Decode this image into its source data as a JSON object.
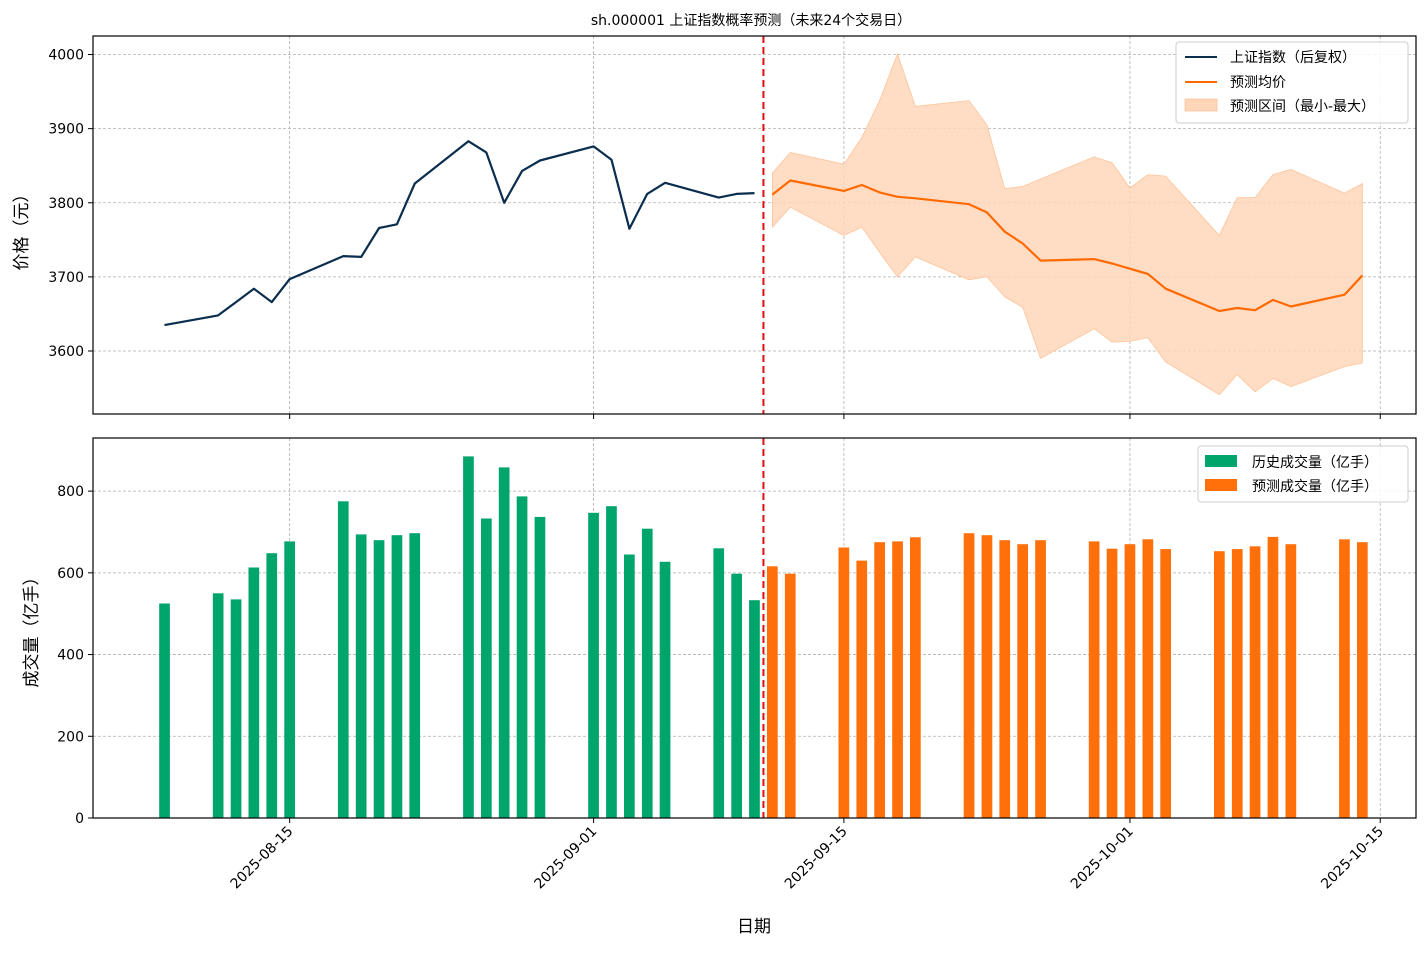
{
  "chart_data": [
    {
      "type": "line",
      "title": "sh.000001 上证指数概率预测（未来24个交易日）",
      "ylabel": "价格（元）",
      "xlabel": "",
      "ylim": [
        3515,
        4025
      ],
      "xlim": [
        "2025-08-04",
        "2025-10-17"
      ],
      "y_ticks": [
        3600,
        3700,
        3800,
        3900,
        4000
      ],
      "grid": true,
      "legend_position": "top-right",
      "legend": [
        "上证指数（后复权）",
        "预测均价",
        "预测区间（最小-最大）"
      ],
      "colors": {
        "history": "#0b2d4e",
        "forecast": "#ff6a00",
        "band": "#ffd6ba",
        "divider": "#e01010"
      },
      "divider_date": "2025-09-10",
      "series": [
        {
          "name": "上证指数（后复权）",
          "x": [
            "2025-08-08",
            "2025-08-11",
            "2025-08-12",
            "2025-08-13",
            "2025-08-14",
            "2025-08-15",
            "2025-08-18",
            "2025-08-19",
            "2025-08-20",
            "2025-08-21",
            "2025-08-22",
            "2025-08-25",
            "2025-08-26",
            "2025-08-27",
            "2025-08-28",
            "2025-08-29",
            "2025-09-01",
            "2025-09-02",
            "2025-09-03",
            "2025-09-04",
            "2025-09-05",
            "2025-09-08",
            "2025-09-09",
            "2025-09-10"
          ],
          "values": [
            3635,
            3648,
            3666,
            3684,
            3666,
            3697,
            3728,
            3727,
            3766,
            3771,
            3826,
            3883,
            3868,
            3800,
            3843,
            3857,
            3876,
            3858,
            3765,
            3812,
            3827,
            3807,
            3812,
            3813
          ]
        },
        {
          "name": "预测均价",
          "x": [
            "2025-09-11",
            "2025-09-12",
            "2025-09-15",
            "2025-09-16",
            "2025-09-17",
            "2025-09-18",
            "2025-09-19",
            "2025-09-22",
            "2025-09-23",
            "2025-09-24",
            "2025-09-25",
            "2025-09-26",
            "2025-09-29",
            "2025-09-30",
            "2025-10-01",
            "2025-10-02",
            "2025-10-03",
            "2025-10-06",
            "2025-10-07",
            "2025-10-08",
            "2025-10-09",
            "2025-10-10",
            "2025-10-13",
            "2025-10-14"
          ],
          "values": [
            3811,
            3830,
            3816,
            3824,
            3814,
            3808,
            3806,
            3798,
            3787,
            3761,
            3745,
            3722,
            3724,
            3718,
            3711,
            3704,
            3684,
            3654,
            3658,
            3655,
            3669,
            3660,
            3676,
            3702
          ]
        },
        {
          "name": "预测区间（最小-最大）",
          "x": [
            "2025-09-11",
            "2025-09-12",
            "2025-09-15",
            "2025-09-16",
            "2025-09-17",
            "2025-09-18",
            "2025-09-19",
            "2025-09-22",
            "2025-09-23",
            "2025-09-24",
            "2025-09-25",
            "2025-09-26",
            "2025-09-29",
            "2025-09-30",
            "2025-10-01",
            "2025-10-02",
            "2025-10-03",
            "2025-10-06",
            "2025-10-07",
            "2025-10-08",
            "2025-10-09",
            "2025-10-10",
            "2025-10-13",
            "2025-10-14"
          ],
          "upper": [
            3840,
            3868,
            3852,
            3888,
            3938,
            4001,
            3930,
            3938,
            3905,
            3819,
            3822,
            3832,
            3862,
            3854,
            3820,
            3838,
            3836,
            3756,
            3807,
            3807,
            3838,
            3845,
            3813,
            3826
          ],
          "lower": [
            3767,
            3794,
            3756,
            3767,
            3733,
            3700,
            3727,
            3696,
            3700,
            3673,
            3659,
            3590,
            3630,
            3612,
            3613,
            3618,
            3585,
            3541,
            3568,
            3545,
            3563,
            3552,
            3579,
            3584
          ]
        }
      ]
    },
    {
      "type": "bar",
      "title": "",
      "ylabel": "成交量（亿手）",
      "xlabel": "日期",
      "ylim": [
        0,
        930
      ],
      "xlim": [
        "2025-08-04",
        "2025-10-17"
      ],
      "y_ticks": [
        0,
        200,
        400,
        600,
        800
      ],
      "x_ticks": [
        "2025-08-15",
        "2025-09-01",
        "2025-09-15",
        "2025-10-01",
        "2025-10-15"
      ],
      "grid": true,
      "legend_position": "top-right",
      "legend": [
        "历史成交量（亿手）",
        "预测成交量（亿手）"
      ],
      "colors": {
        "history": "#00a56b",
        "forecast": "#ff6f0a",
        "divider": "#e01010"
      },
      "divider_date": "2025-09-10",
      "series": [
        {
          "name": "历史成交量（亿手）",
          "x": [
            "2025-08-08",
            "2025-08-11",
            "2025-08-12",
            "2025-08-13",
            "2025-08-14",
            "2025-08-15",
            "2025-08-18",
            "2025-08-19",
            "2025-08-20",
            "2025-08-21",
            "2025-08-22",
            "2025-08-25",
            "2025-08-26",
            "2025-08-27",
            "2025-08-28",
            "2025-08-29",
            "2025-09-01",
            "2025-09-02",
            "2025-09-03",
            "2025-09-04",
            "2025-09-05",
            "2025-09-08",
            "2025-09-09",
            "2025-09-10"
          ],
          "values": [
            525,
            550,
            535,
            613,
            648,
            677,
            775,
            694,
            680,
            692,
            697,
            885,
            733,
            858,
            787,
            737,
            747,
            763,
            645,
            708,
            627,
            660,
            598,
            533
          ]
        },
        {
          "name": "预测成交量（亿手）",
          "x": [
            "2025-09-11",
            "2025-09-12",
            "2025-09-15",
            "2025-09-16",
            "2025-09-17",
            "2025-09-18",
            "2025-09-19",
            "2025-09-22",
            "2025-09-23",
            "2025-09-24",
            "2025-09-25",
            "2025-09-26",
            "2025-09-29",
            "2025-09-30",
            "2025-10-01",
            "2025-10-02",
            "2025-10-03",
            "2025-10-06",
            "2025-10-07",
            "2025-10-08",
            "2025-10-09",
            "2025-10-10",
            "2025-10-13",
            "2025-10-14"
          ],
          "values": [
            616,
            598,
            662,
            630,
            675,
            677,
            687,
            697,
            692,
            680,
            670,
            680,
            677,
            659,
            670,
            682,
            658,
            653,
            658,
            665,
            688,
            670,
            682,
            675
          ]
        }
      ]
    }
  ]
}
